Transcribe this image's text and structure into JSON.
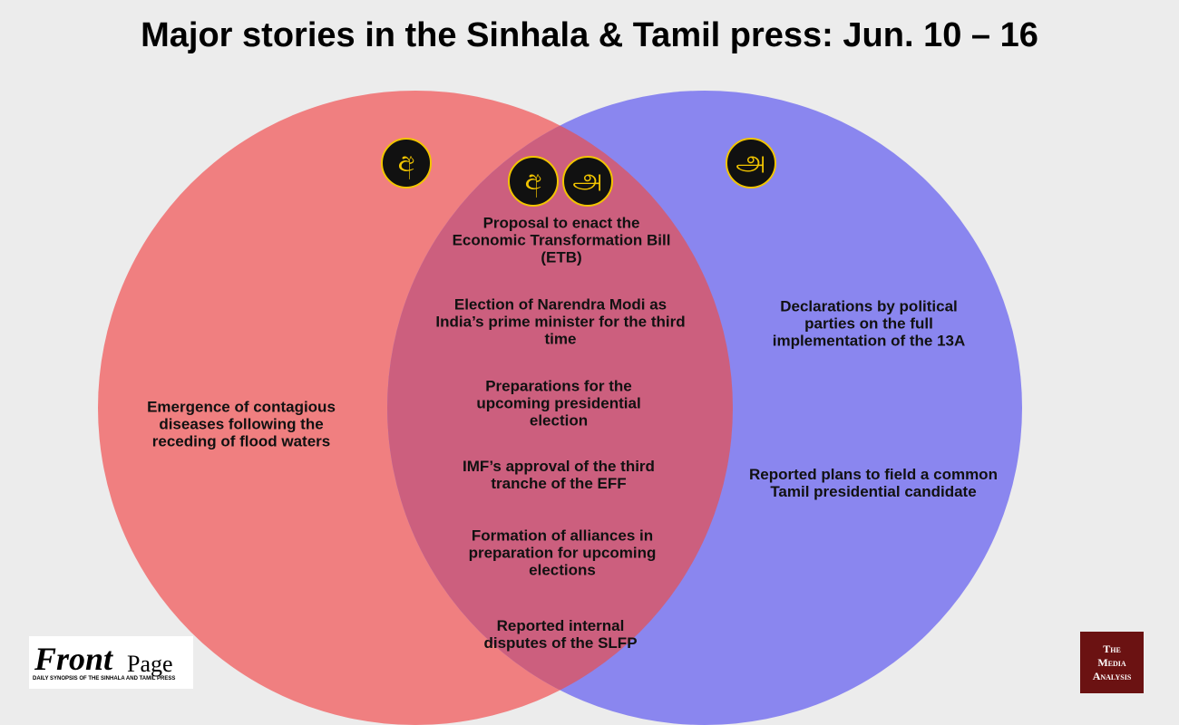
{
  "title": "Major stories in the Sinhala & Tamil press: Jun. 10 – 16",
  "sinhala": {
    "icon": "අ",
    "items": [
      "Emergence of contagious diseases following the receding of flood waters"
    ]
  },
  "both": {
    "icons": [
      "අ",
      "அ"
    ],
    "items": [
      "Proposal to enact the Economic Transformation Bill (ETB)",
      "Election of Narendra Modi as India’s prime minister for the third time",
      "Preparations for the upcoming presidential election",
      "IMF’s approval of the third tranche of the EFF",
      "Formation of alliances in preparation for upcoming elections",
      "Reported internal disputes of the SLFP"
    ]
  },
  "tamil": {
    "icon": "அ",
    "items": [
      "Declarations by political parties on the full implementation of the 13A",
      "Reported plans to field a common Tamil presidential candidate"
    ]
  },
  "logos": {
    "frontpage": {
      "front": "Front",
      "page": "Page",
      "tagline": "DAILY SYNOPSIS OF THE SINHALA AND TAMIL PRESS"
    },
    "media_analysis": [
      "The",
      "Media",
      "Analysis"
    ]
  }
}
